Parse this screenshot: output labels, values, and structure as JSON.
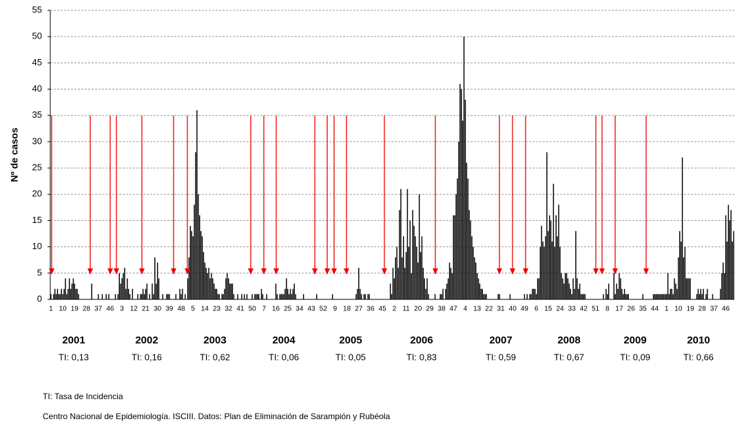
{
  "chart_data": {
    "type": "bar",
    "ylabel": "Nº de casos",
    "color": "#000000",
    "grid": true,
    "ylim": [
      0,
      55
    ],
    "yticks": [
      0,
      5,
      10,
      15,
      20,
      25,
      30,
      35,
      40,
      45,
      50,
      55
    ],
    "categories": [
      "1",
      null,
      null,
      null,
      null,
      null,
      null,
      null,
      null,
      "10",
      null,
      null,
      null,
      null,
      null,
      null,
      null,
      null,
      "19",
      null,
      null,
      null,
      null,
      null,
      null,
      null,
      null,
      "28",
      null,
      null,
      null,
      null,
      null,
      null,
      null,
      null,
      "37",
      null,
      null,
      null,
      null,
      null,
      null,
      null,
      null,
      "46",
      null,
      null,
      null,
      null,
      null,
      null,
      null,
      null,
      "3",
      null,
      null,
      null,
      null,
      null,
      null,
      null,
      null,
      "12",
      null,
      null,
      null,
      null,
      null,
      null,
      null,
      null,
      "21",
      null,
      null,
      null,
      null,
      null,
      null,
      null,
      null,
      "30",
      null,
      null,
      null,
      null,
      null,
      null,
      null,
      null,
      "39",
      null,
      null,
      null,
      null,
      null,
      null,
      null,
      null,
      "48",
      null,
      null,
      null,
      null,
      null,
      null,
      null,
      null,
      "5",
      null,
      null,
      null,
      null,
      null,
      null,
      null,
      null,
      "14",
      null,
      null,
      null,
      null,
      null,
      null,
      null,
      null,
      "23",
      null,
      null,
      null,
      null,
      null,
      null,
      null,
      null,
      "32",
      null,
      null,
      null,
      null,
      null,
      null,
      null,
      null,
      "41",
      null,
      null,
      null,
      null,
      null,
      null,
      null,
      null,
      "50",
      null,
      null,
      null,
      null,
      null,
      null,
      null,
      null,
      "7",
      null,
      null,
      null,
      null,
      null,
      null,
      null,
      null,
      "16",
      null,
      null,
      null,
      null,
      null,
      null,
      null,
      null,
      "25",
      null,
      null,
      null,
      null,
      null,
      null,
      null,
      null,
      "34",
      null,
      null,
      null,
      null,
      null,
      null,
      null,
      null,
      "43",
      null,
      null,
      null,
      null,
      null,
      null,
      null,
      null,
      "52",
      null,
      null,
      null,
      null,
      null,
      null,
      null,
      null,
      "9",
      null,
      null,
      null,
      null,
      null,
      null,
      null,
      null,
      "18",
      null,
      null,
      null,
      null,
      null,
      null,
      null,
      null,
      "27",
      null,
      null,
      null,
      null,
      null,
      null,
      null,
      null,
      "36",
      null,
      null,
      null,
      null,
      null,
      null,
      null,
      null,
      "45",
      null,
      null,
      null,
      null,
      null,
      null,
      null,
      null,
      "2",
      null,
      null,
      null,
      null,
      null,
      null,
      null,
      null,
      "11",
      null,
      null,
      null,
      null,
      null,
      null,
      null,
      null,
      "20",
      null,
      null,
      null,
      null,
      null,
      null,
      null,
      null,
      "29",
      null,
      null,
      null,
      null,
      null,
      null,
      null,
      null,
      "38",
      null,
      null,
      null,
      null,
      null,
      null,
      null,
      null,
      "47",
      null,
      null,
      null,
      null,
      null,
      null,
      null,
      null,
      "4",
      null,
      null,
      null,
      null,
      null,
      null,
      null,
      null,
      "13",
      null,
      null,
      null,
      null,
      null,
      null,
      null,
      null,
      "22",
      null,
      null,
      null,
      null,
      null,
      null,
      null,
      null,
      "31",
      null,
      null,
      null,
      null,
      null,
      null,
      null,
      null,
      "40",
      null,
      null,
      null,
      null,
      null,
      null,
      null,
      null,
      "49",
      null,
      null,
      null,
      null,
      null,
      null,
      null,
      null,
      "6",
      null,
      null,
      null,
      null,
      null,
      null,
      null,
      null,
      "15",
      null,
      null,
      null,
      null,
      null,
      null,
      null,
      null,
      "24",
      null,
      null,
      null,
      null,
      null,
      null,
      null,
      null,
      "33",
      null,
      null,
      null,
      null,
      null,
      null,
      null,
      null,
      "42",
      null,
      null,
      null,
      null,
      null,
      null,
      null,
      null,
      "51",
      null,
      null,
      null,
      null,
      null,
      null,
      null,
      null,
      "8",
      null,
      null,
      null,
      null,
      null,
      null,
      null,
      null,
      "17",
      null,
      null,
      null,
      null,
      null,
      null,
      null,
      null,
      "26",
      null,
      null,
      null,
      null,
      null,
      null,
      null,
      null,
      "35",
      null,
      null,
      null,
      null,
      null,
      null,
      null,
      null,
      "44",
      null,
      null,
      null,
      null,
      null,
      null,
      null,
      null,
      "1",
      null,
      null,
      null,
      null,
      null,
      null,
      null,
      null,
      "10",
      null,
      null,
      null,
      null,
      null,
      null,
      null,
      null,
      "19",
      null,
      null,
      null,
      null,
      null,
      null,
      null,
      null,
      "28",
      null,
      null,
      null,
      null,
      null,
      null,
      null,
      null,
      "37",
      null,
      null,
      null,
      null,
      null,
      null,
      null,
      null,
      "46",
      null,
      null,
      null,
      null,
      null,
      null
    ],
    "values": [
      1,
      0,
      1,
      2,
      1,
      2,
      1,
      1,
      2,
      1,
      2,
      4,
      1,
      2,
      4,
      2,
      3,
      4,
      3,
      2,
      2,
      1,
      0,
      0,
      0,
      0,
      0,
      0,
      0,
      0,
      0,
      3,
      0,
      0,
      0,
      0,
      1,
      0,
      0,
      1,
      0,
      0,
      1,
      0,
      1,
      0,
      0,
      0,
      0,
      1,
      0,
      1,
      5,
      3,
      4,
      5,
      6,
      2,
      4,
      2,
      1,
      0,
      2,
      0,
      0,
      0,
      1,
      0,
      1,
      1,
      2,
      1,
      2,
      3,
      0,
      1,
      0,
      3,
      1,
      8,
      3,
      7,
      4,
      0,
      0,
      1,
      0,
      0,
      1,
      1,
      1,
      0,
      0,
      0,
      0,
      1,
      0,
      0,
      2,
      1,
      2,
      0,
      1,
      0,
      4,
      8,
      14,
      13,
      12,
      18,
      28,
      36,
      20,
      16,
      13,
      12,
      9,
      7,
      6,
      5,
      6,
      4,
      5,
      4,
      3,
      2,
      2,
      1,
      1,
      0,
      1,
      1,
      2,
      4,
      5,
      4,
      3,
      3,
      3,
      1,
      0,
      0,
      1,
      0,
      0,
      1,
      0,
      1,
      0,
      1,
      0,
      0,
      0,
      1,
      0,
      1,
      1,
      1,
      1,
      0,
      2,
      1,
      0,
      0,
      1,
      0,
      0,
      0,
      0,
      0,
      0,
      3,
      1,
      0,
      1,
      1,
      1,
      1,
      2,
      4,
      2,
      1,
      2,
      1,
      2,
      3,
      1,
      0,
      0,
      0,
      0,
      0,
      1,
      0,
      0,
      0,
      0,
      0,
      0,
      0,
      0,
      0,
      1,
      0,
      0,
      0,
      0,
      0,
      0,
      0,
      0,
      0,
      0,
      0,
      1,
      0,
      0,
      0,
      0,
      0,
      0,
      0,
      0,
      0,
      0,
      0,
      0,
      0,
      0,
      0,
      0,
      0,
      1,
      2,
      6,
      2,
      1,
      0,
      1,
      1,
      0,
      1,
      1,
      0,
      0,
      0,
      0,
      0,
      0,
      0,
      0,
      0,
      0,
      0,
      0,
      0,
      0,
      0,
      3,
      1,
      6,
      4,
      8,
      10,
      6,
      17,
      21,
      8,
      12,
      6,
      9,
      21,
      10,
      15,
      5,
      17,
      14,
      12,
      10,
      7,
      20,
      9,
      12,
      6,
      4,
      2,
      4,
      1,
      0,
      0,
      0,
      0,
      1,
      0,
      0,
      0,
      1,
      1,
      2,
      0,
      2,
      3,
      4,
      7,
      6,
      5,
      16,
      16,
      20,
      23,
      30,
      41,
      40,
      34,
      50,
      38,
      26,
      23,
      17,
      15,
      12,
      10,
      8,
      7,
      5,
      4,
      3,
      2,
      2,
      1,
      1,
      1,
      0,
      0,
      0,
      0,
      0,
      0,
      0,
      0,
      1,
      1,
      0,
      0,
      0,
      0,
      0,
      0,
      0,
      1,
      0,
      0,
      0,
      0,
      0,
      0,
      0,
      0,
      0,
      0,
      1,
      0,
      1,
      0,
      1,
      1,
      2,
      2,
      2,
      1,
      4,
      4,
      10,
      14,
      11,
      10,
      12,
      28,
      13,
      16,
      15,
      11,
      22,
      10,
      16,
      12,
      18,
      10,
      5,
      4,
      3,
      5,
      5,
      4,
      3,
      2,
      1,
      4,
      2,
      13,
      4,
      2,
      3,
      1,
      1,
      1,
      1,
      0,
      0,
      0,
      0,
      0,
      0,
      0,
      0,
      0,
      0,
      0,
      0,
      0,
      1,
      0,
      2,
      1,
      3,
      0,
      0,
      0,
      5,
      1,
      3,
      2,
      5,
      4,
      2,
      1,
      2,
      1,
      1,
      1,
      0,
      0,
      0,
      0,
      0,
      0,
      0,
      0,
      0,
      0,
      1,
      0,
      0,
      0,
      0,
      0,
      0,
      0,
      1,
      1,
      1,
      1,
      1,
      1,
      1,
      1,
      1,
      1,
      1,
      5,
      1,
      2,
      2,
      1,
      4,
      3,
      2,
      8,
      13,
      11,
      27,
      8,
      10,
      4,
      4,
      4,
      4,
      0,
      0,
      0,
      0,
      1,
      2,
      1,
      2,
      1,
      2,
      0,
      1,
      2,
      0,
      0,
      0,
      1,
      0,
      0,
      0,
      0,
      0,
      2,
      5,
      7,
      5,
      16,
      11,
      18,
      15,
      17,
      11,
      13
    ],
    "years": [
      {
        "label": "2001",
        "ti": "TI: 0,13"
      },
      {
        "label": "2002",
        "ti": "TI: 0,16"
      },
      {
        "label": "2003",
        "ti": "TI: 0,62"
      },
      {
        "label": "2004",
        "ti": "TI: 0,06"
      },
      {
        "label": "2005",
        "ti": "TI: 0,05"
      },
      {
        "label": "2006",
        "ti": "TI: 0,83"
      },
      {
        "label": "2007",
        "ti": "TI: 0,59"
      },
      {
        "label": "2008",
        "ti": "TI: 0,67"
      },
      {
        "label": "2009",
        "ti": "TI: 0,09"
      },
      {
        "label": "2010",
        "ti": "TI: 0,66"
      }
    ],
    "notes": [
      "TI: Tasa de Incidencia",
      "Centro Nacional de Epidemiología. ISCIII. Datos: Plan de Eliminación de Sarampión y Rubéola"
    ]
  }
}
